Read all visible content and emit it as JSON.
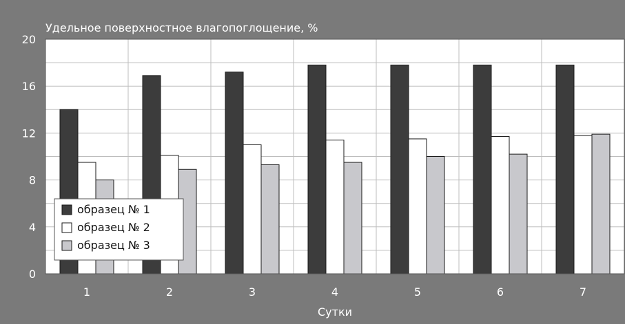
{
  "chart_data": {
    "type": "bar",
    "title": "Удельное поверхностное влагопоглощение, %",
    "xlabel": "Сутки",
    "ylabel": "",
    "categories": [
      "1",
      "2",
      "3",
      "4",
      "5",
      "6",
      "7"
    ],
    "yticks": [
      "0",
      "4",
      "8",
      "12",
      "16",
      "20"
    ],
    "ylim": [
      0,
      20
    ],
    "grid": true,
    "legend_position": "bottom-left",
    "series": [
      {
        "name": "образец № 1",
        "color": "#3c3c3c",
        "values": [
          14.0,
          16.9,
          17.2,
          17.8,
          17.8,
          17.8,
          17.8
        ]
      },
      {
        "name": "образец № 2",
        "color": "#ffffff",
        "values": [
          9.5,
          10.1,
          11.0,
          11.4,
          11.5,
          11.7,
          11.8
        ]
      },
      {
        "name": "образец № 3",
        "color": "#c8c8cc",
        "values": [
          8.0,
          8.9,
          9.3,
          9.5,
          10.0,
          10.2,
          11.9
        ]
      }
    ],
    "colors": {
      "frame": "#7a7a7a",
      "plot_bg": "#ffffff",
      "grid": "#bdbdbd",
      "bar_stroke": "#1a1a1a"
    }
  }
}
